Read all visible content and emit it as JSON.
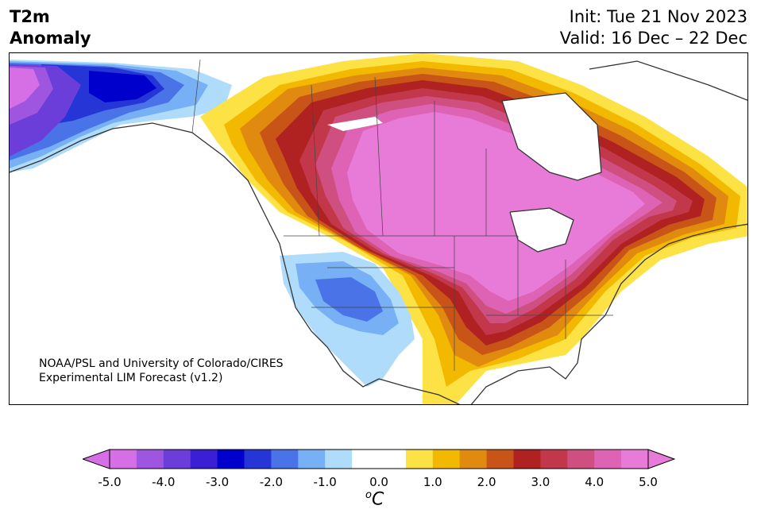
{
  "header": {
    "title_line1": "T2m",
    "title_line2": "Anomaly",
    "init_label": "Init: Tue 21 Nov 2023",
    "valid_label": "Valid: 16 Dec – 22 Dec"
  },
  "credit": {
    "line1": "NOAA/PSL and University of Colorado/CIRES",
    "line2": "Experimental LIM Forecast (v1.2)"
  },
  "colorbar": {
    "unit_sup": "o",
    "unit": "C",
    "tick_labels": [
      "-5.0",
      "-4.0",
      "-3.0",
      "-2.0",
      "-1.0",
      "0.0",
      "1.0",
      "2.0",
      "3.0",
      "4.0",
      "5.0"
    ],
    "colors": [
      "#d66ee6",
      "#9e55e0",
      "#6b3dd9",
      "#3a1fd4",
      "#0000cc",
      "#2636d6",
      "#4a73e8",
      "#78b0f5",
      "#b0dcfb",
      "#ffffff",
      "#ffffff",
      "#fde245",
      "#f3b800",
      "#e08a10",
      "#c85418",
      "#b02222",
      "#c2384a",
      "#cf4f80",
      "#de63b4",
      "#e87ad8"
    ]
  }
}
